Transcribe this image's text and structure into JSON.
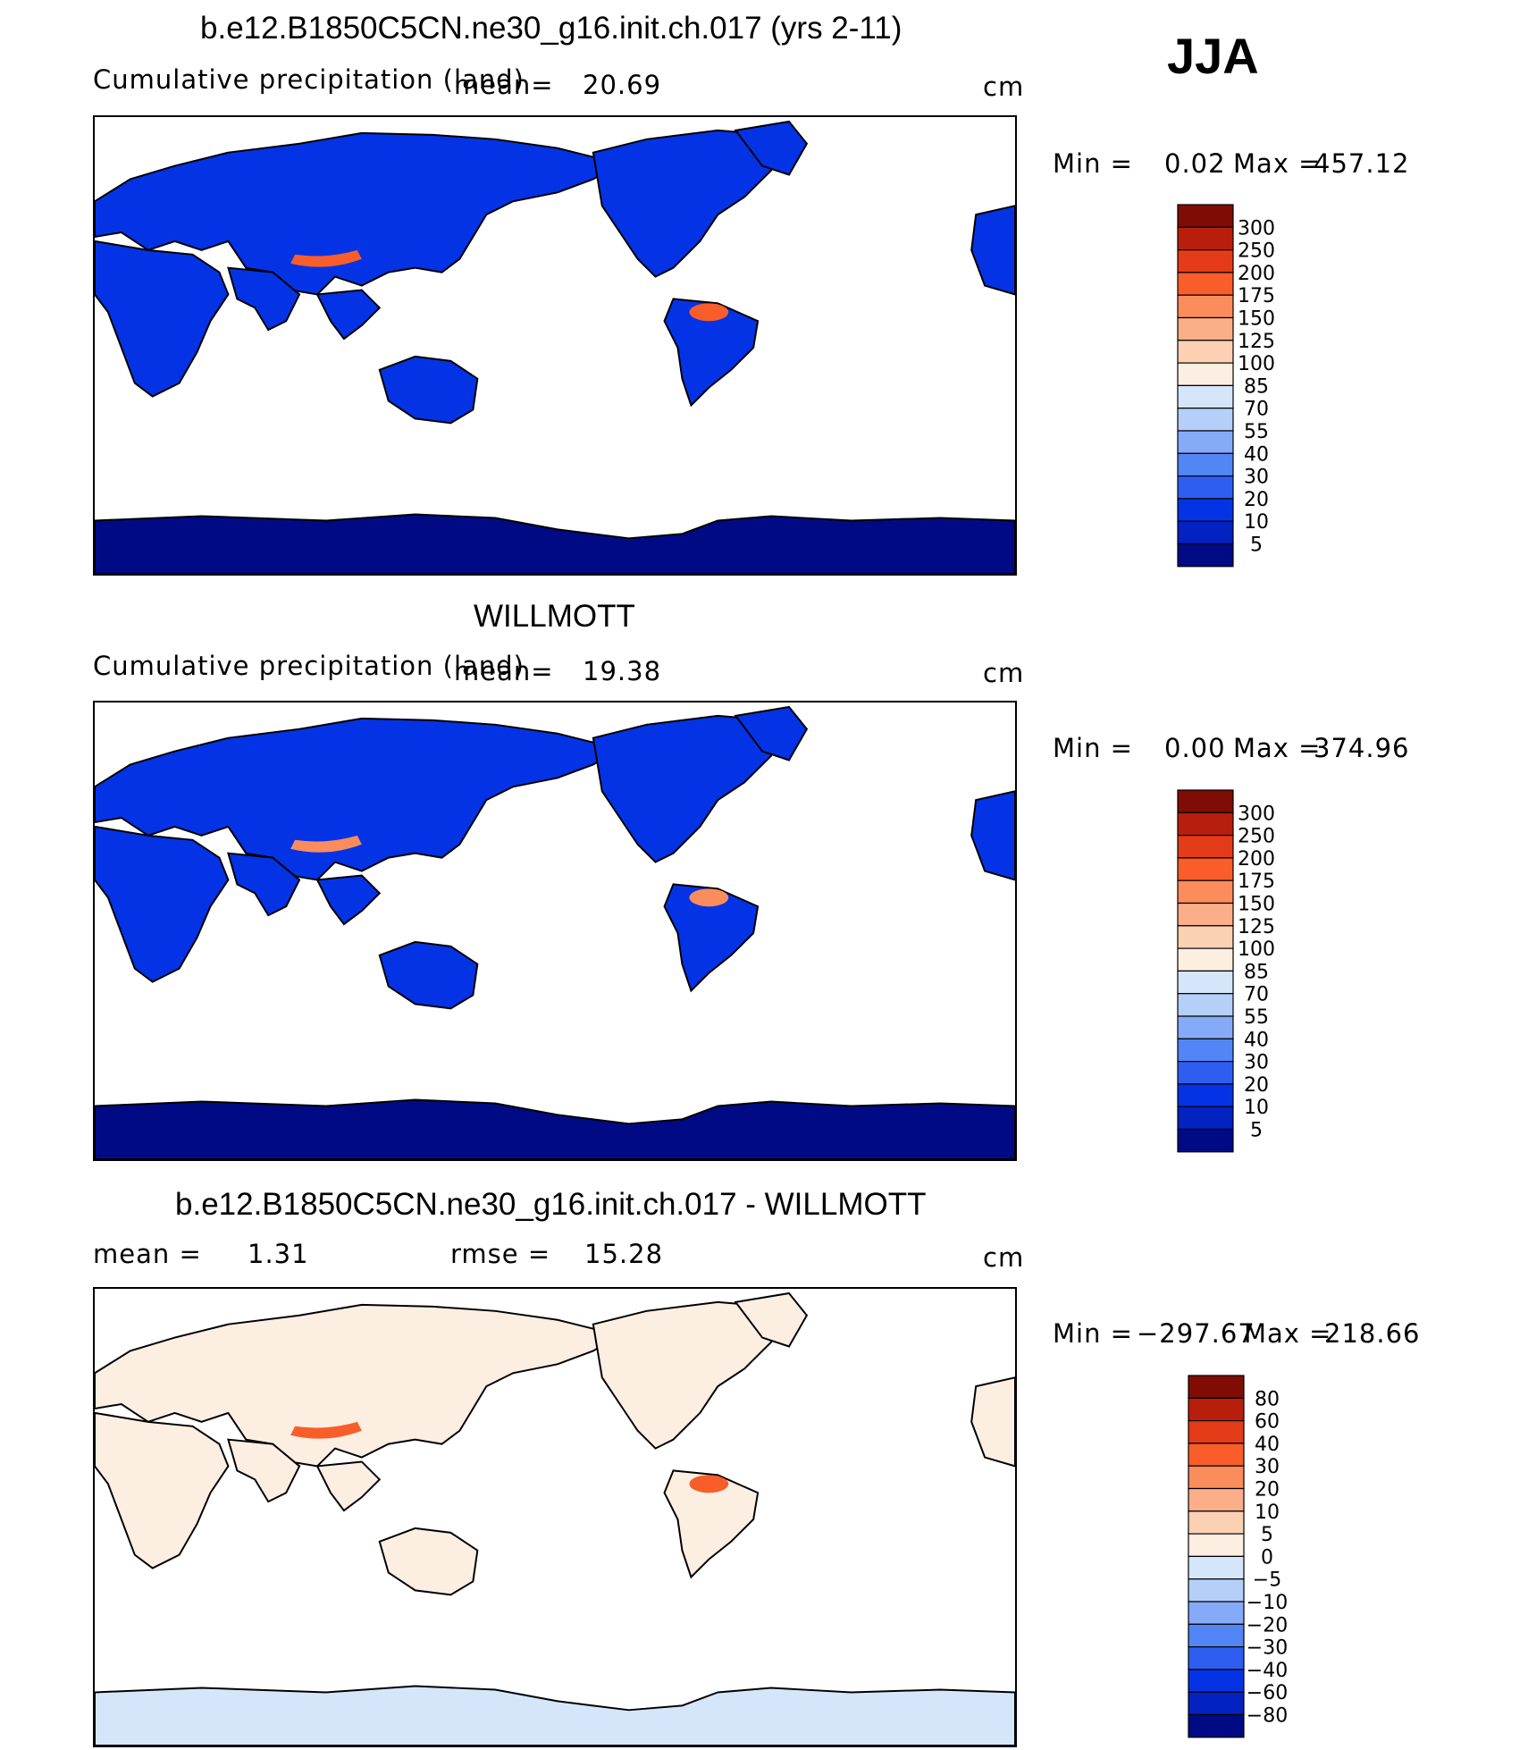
{
  "season": "JJA",
  "colors": {
    "main_scale": [
      "#010a85",
      "#0222c2",
      "#0433e6",
      "#2e5ef0",
      "#5285f5",
      "#85aaf7",
      "#b6cff9",
      "#d5e6fb",
      "#fdeee2",
      "#fbd0b3",
      "#fbae88",
      "#fb8c5c",
      "#f85d2a",
      "#e43b18",
      "#b81e0c",
      "#7f0d05"
    ],
    "diff_scale": [
      "#010a85",
      "#0222c2",
      "#0433e6",
      "#2e5ef0",
      "#5285f5",
      "#85aaf7",
      "#b6cff9",
      "#d5e6fb",
      "#fdeee2",
      "#fbd0b3",
      "#fbae88",
      "#fb8c5c",
      "#f85d2a",
      "#e43b18",
      "#b81e0c",
      "#7f0d05"
    ]
  },
  "panels": [
    {
      "title": "b.e12.B1850C5CN.ne30_g16.init.ch.017 (yrs 2-11)",
      "left_label": "Cumulative precipitation (land)",
      "mean_label": "mean=",
      "mean_value": "20.69",
      "units": "cm",
      "min_label": "Min =",
      "min_value": "0.02",
      "max_label": "Max =",
      "max_value": "457.12",
      "legend_labels": [
        "300",
        "250",
        "200",
        "175",
        "150",
        "125",
        "100",
        "85",
        "70",
        "55",
        "40",
        "30",
        "20",
        "10",
        "5"
      ],
      "land_color": "#0433e6",
      "polar_color": "#010a85",
      "wet_color": "#f85d2a"
    },
    {
      "title": "WILLMOTT",
      "left_label": "Cumulative precipitation (land)",
      "mean_label": "mean=",
      "mean_value": "19.38",
      "units": "cm",
      "min_label": "Min =",
      "min_value": "0.00",
      "max_label": "Max =",
      "max_value": "374.96",
      "legend_labels": [
        "300",
        "250",
        "200",
        "175",
        "150",
        "125",
        "100",
        "85",
        "70",
        "55",
        "40",
        "30",
        "20",
        "10",
        "5"
      ],
      "land_color": "#0433e6",
      "polar_color": "#010a85",
      "wet_color": "#fb8c5c"
    },
    {
      "title": "b.e12.B1850C5CN.ne30_g16.init.ch.017 - WILLMOTT",
      "left_label": "mean =",
      "left_value": "1.31",
      "mean_label": "rmse =",
      "mean_value": "15.28",
      "units": "cm",
      "min_label": "Min =",
      "min_value": "−297.67",
      "max_label": "Max =",
      "max_value": "218.66",
      "legend_labels": [
        "80",
        "60",
        "40",
        "30",
        "20",
        "10",
        "5",
        "0",
        "−5",
        "−10",
        "−20",
        "−30",
        "−40",
        "−60",
        "−80"
      ],
      "land_color": "#fdeee2",
      "polar_color": "#d5e6fb",
      "wet_color": "#f85d2a"
    }
  ]
}
